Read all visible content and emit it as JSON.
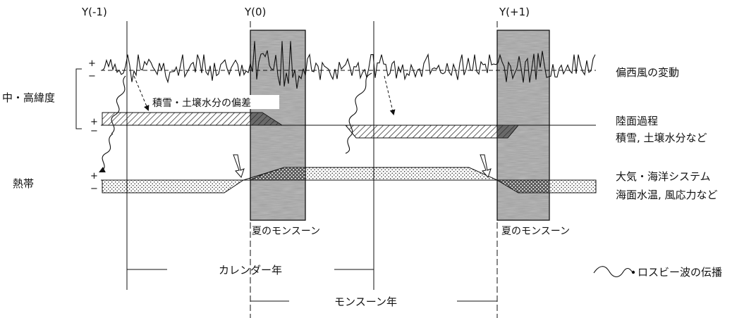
{
  "years": {
    "y_minus1": "Y(-1)",
    "y0": "Y(0)",
    "y_plus1": "Y(+1)"
  },
  "left_labels": {
    "mid_high_lat": "中・高緯度",
    "tropics": "熱帯"
  },
  "right_labels": {
    "westerlies": "偏西風の変動",
    "land_title": "陸面過程",
    "land_sub": "積雪, 土壌水分など",
    "ocean_title": "大気・海洋システム",
    "ocean_sub": "海面水温, 風応力など"
  },
  "anomaly_label": "積雪・土壌水分の偏差",
  "monsoon": {
    "label_1": "夏のモンスーン",
    "label_2": "夏のモンスーン"
  },
  "periods": {
    "calendar_year": "カレンダー年",
    "monsoon_year": "モンスーン年"
  },
  "legend": {
    "rossby": "ロスビー波の伝播"
  },
  "signs": {
    "plus": "+",
    "minus": "−"
  }
}
